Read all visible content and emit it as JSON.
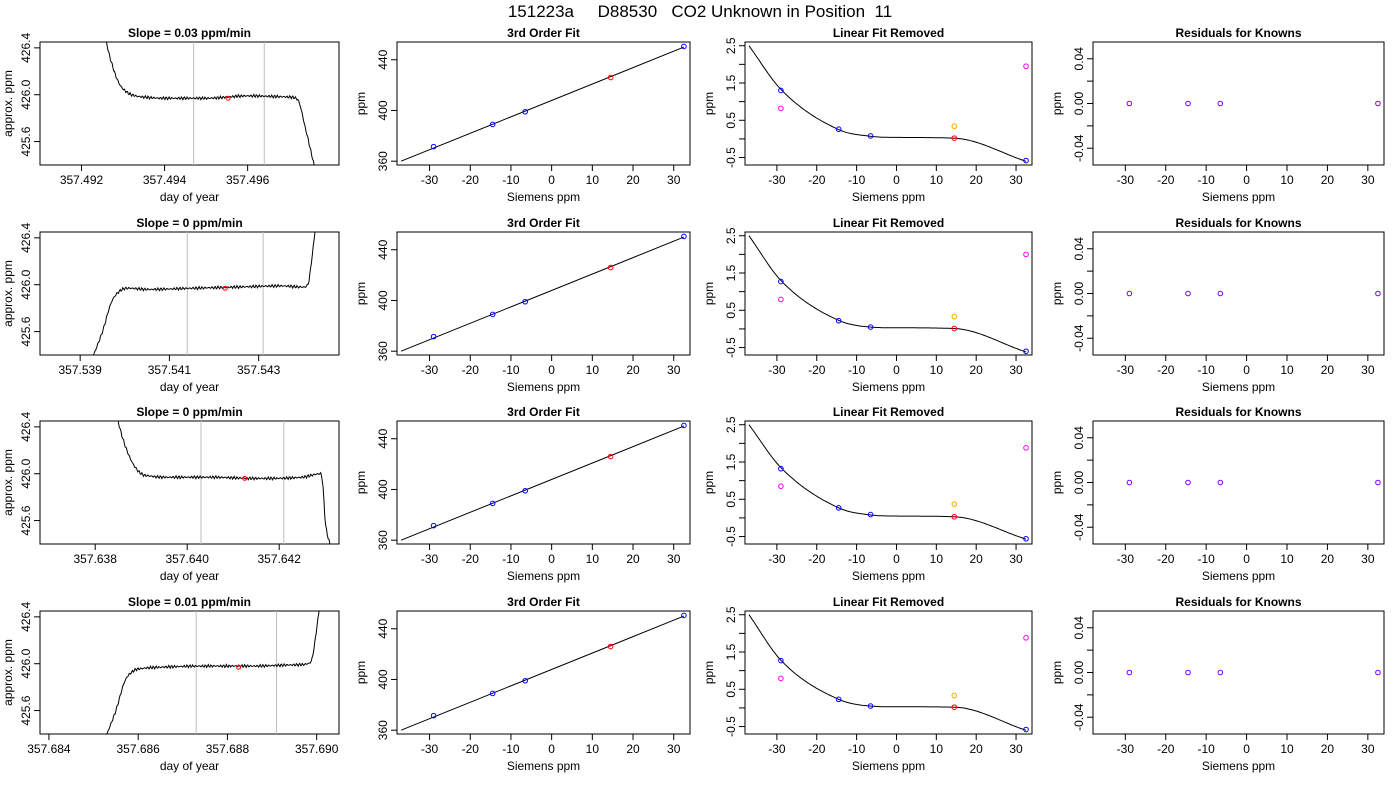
{
  "header": {
    "title": "151223a     D88530   CO2 Unknown in Position  11"
  },
  "colors": {
    "line": "#000000",
    "vline": "#bebebe",
    "known_point": "#0000ff",
    "unknown_point": "#ff0000",
    "raw_unknown": "#ffa500",
    "raw_known": "#ff00ff",
    "residual": "#8000ff"
  },
  "chart_data": [
    {
      "type": "line",
      "row": 0,
      "panel": "timeseries",
      "title": "Slope =  0.03  ppm/min",
      "xlabel": "day of year",
      "ylabel": "approx. ppm",
      "xlim": [
        357.491,
        357.4982
      ],
      "ylim": [
        425.4,
        426.45
      ],
      "xticks": [
        "357.492",
        "357.494",
        "357.496"
      ],
      "xtick_values": [
        357.492,
        357.494,
        357.496
      ],
      "yticks": [
        "425.6",
        "426.0",
        "426.4"
      ],
      "ytick_values": [
        425.6,
        426.0,
        426.4
      ],
      "vlines": [
        357.4947,
        357.4964
      ],
      "marker": {
        "x": 357.49553,
        "y": 425.97
      },
      "series": [
        {
          "x": [
            357.4925,
            357.4927,
            357.4929,
            357.4931,
            357.4933,
            357.4935,
            357.494,
            357.495,
            357.496,
            357.497,
            357.4972,
            357.4974,
            357.4976
          ],
          "y": [
            426.6,
            426.3,
            426.1,
            426.02,
            425.99,
            425.98,
            425.97,
            425.97,
            425.99,
            425.98,
            425.96,
            425.7,
            425.4
          ]
        }
      ]
    },
    {
      "type": "scatter",
      "row": 0,
      "panel": "fit",
      "title": "3rd Order Fit",
      "xlabel": "Siemens ppm",
      "ylabel": "ppm",
      "xlim": [
        -38,
        34
      ],
      "ylim": [
        357,
        454
      ],
      "xticks": [
        "-30",
        "-20",
        "-10",
        "0",
        "10",
        "20",
        "30"
      ],
      "xtick_values": [
        -30,
        -20,
        -10,
        0,
        10,
        20,
        30
      ],
      "yticks": [
        "360",
        "400",
        "440"
      ],
      "ytick_values": [
        360,
        400,
        440
      ],
      "line": {
        "x": [
          -37,
          32.5
        ],
        "y": [
          360,
          450
        ]
      },
      "knowns": {
        "x": [
          -29,
          -14.5,
          -6.5,
          32.5
        ],
        "y": [
          371.5,
          389,
          399,
          450.5
        ]
      },
      "unknown": {
        "x": 14.5,
        "y": 426
      }
    },
    {
      "type": "scatter",
      "row": 0,
      "panel": "linear_removed",
      "title": "Linear Fit Removed",
      "xlabel": "Siemens ppm",
      "ylabel": "ppm",
      "xlim": [
        -38,
        34
      ],
      "ylim": [
        -0.7,
        2.6
      ],
      "xticks": [
        "-30",
        "-20",
        "-10",
        "0",
        "10",
        "20",
        "30"
      ],
      "xtick_values": [
        -30,
        -20,
        -10,
        0,
        10,
        20,
        30
      ],
      "yticks": [
        "-0.5",
        "0.5",
        "1.5",
        "2.5"
      ],
      "ytick_values": [
        -0.5,
        0.5,
        1.5,
        2.5
      ],
      "minor_yticks": [
        0,
        1,
        2
      ],
      "curve": {
        "x": [
          -37,
          -29,
          -14.5,
          -6.5,
          0,
          14.5,
          32.5
        ],
        "y": [
          2.5,
          1.33,
          0.25,
          0.07,
          0.04,
          0.02,
          -0.6
        ]
      },
      "knowns": {
        "x": [
          -29,
          -14.5,
          -6.5,
          32.5
        ],
        "y": [
          1.3,
          0.26,
          0.08,
          -0.58
        ]
      },
      "unknown": {
        "x": 14.5,
        "y": 0.02
      },
      "raw_unknown": {
        "x": 14.5,
        "y": 0.34
      },
      "raw_known": {
        "x": [
          -29,
          32.5
        ],
        "y": [
          0.82,
          1.95
        ]
      }
    },
    {
      "type": "scatter",
      "row": 0,
      "panel": "residuals",
      "title": "Residuals for Knowns",
      "xlabel": "Siemens ppm",
      "ylabel": "ppm",
      "xlim": [
        -38,
        34
      ],
      "ylim": [
        -0.055,
        0.055
      ],
      "xticks": [
        "-30",
        "-20",
        "-10",
        "0",
        "10",
        "20",
        "30"
      ],
      "xtick_values": [
        -30,
        -20,
        -10,
        0,
        10,
        20,
        30
      ],
      "yticks": [
        "-0.04",
        "0.00",
        "0.04"
      ],
      "ytick_values": [
        -0.04,
        0,
        0.04
      ],
      "minor_yticks": [
        -0.02,
        0.02
      ],
      "points": {
        "x": [
          -29,
          -14.5,
          -6.5,
          32.5
        ],
        "y": [
          0,
          0,
          0,
          0
        ]
      }
    },
    {
      "type": "line",
      "row": 1,
      "panel": "timeseries",
      "title": "Slope =  0  ppm/min",
      "xlabel": "day of year",
      "ylabel": "approx. ppm",
      "xlim": [
        357.5381,
        357.5448
      ],
      "ylim": [
        425.4,
        426.45
      ],
      "xticks": [
        "357.539",
        "357.541",
        "357.543"
      ],
      "xtick_values": [
        357.539,
        357.541,
        357.543
      ],
      "yticks": [
        "425.6",
        "426.0",
        "426.4"
      ],
      "ytick_values": [
        425.6,
        426.0,
        426.4
      ],
      "vlines": [
        357.5414,
        357.5431
      ],
      "marker": {
        "x": 357.54225,
        "y": 425.97
      },
      "series": [
        {
          "x": [
            357.5393,
            357.5395,
            357.5397,
            357.5399,
            357.5401,
            357.5405,
            357.5415,
            357.5425,
            357.5435,
            357.544,
            357.5441,
            357.5442,
            357.5443
          ],
          "y": [
            425.4,
            425.6,
            425.85,
            425.95,
            425.97,
            425.96,
            425.97,
            425.98,
            425.99,
            425.98,
            426.0,
            426.25,
            426.6
          ]
        }
      ]
    },
    {
      "type": "scatter",
      "row": 1,
      "panel": "fit",
      "title": "3rd Order Fit",
      "xlabel": "Siemens ppm",
      "ylabel": "ppm",
      "xlim": [
        -38,
        34
      ],
      "ylim": [
        357,
        454
      ],
      "xticks": [
        "-30",
        "-20",
        "-10",
        "0",
        "10",
        "20",
        "30"
      ],
      "xtick_values": [
        -30,
        -20,
        -10,
        0,
        10,
        20,
        30
      ],
      "yticks": [
        "360",
        "400",
        "440"
      ],
      "ytick_values": [
        360,
        400,
        440
      ],
      "line": {
        "x": [
          -37,
          32.5
        ],
        "y": [
          360,
          450
        ]
      },
      "knowns": {
        "x": [
          -29,
          -14.5,
          -6.5,
          32.5
        ],
        "y": [
          371.5,
          389,
          399,
          450.5
        ]
      },
      "unknown": {
        "x": 14.5,
        "y": 426
      }
    },
    {
      "type": "scatter",
      "row": 1,
      "panel": "linear_removed",
      "title": "Linear Fit Removed",
      "xlabel": "Siemens ppm",
      "ylabel": "ppm",
      "xlim": [
        -38,
        34
      ],
      "ylim": [
        -0.7,
        2.6
      ],
      "xticks": [
        "-30",
        "-20",
        "-10",
        "0",
        "10",
        "20",
        "30"
      ],
      "xtick_values": [
        -30,
        -20,
        -10,
        0,
        10,
        20,
        30
      ],
      "yticks": [
        "-0.5",
        "0.5",
        "1.5",
        "2.5"
      ],
      "ytick_values": [
        -0.5,
        0.5,
        1.5,
        2.5
      ],
      "minor_yticks": [
        0,
        1,
        2
      ],
      "curve": {
        "x": [
          -37,
          -29,
          -14.5,
          -6.5,
          0,
          14.5,
          32.5
        ],
        "y": [
          2.5,
          1.3,
          0.23,
          0.05,
          0.03,
          0.01,
          -0.62
        ]
      },
      "knowns": {
        "x": [
          -29,
          -14.5,
          -6.5,
          32.5
        ],
        "y": [
          1.27,
          0.22,
          0.05,
          -0.6
        ]
      },
      "unknown": {
        "x": 14.5,
        "y": 0.01
      },
      "raw_unknown": {
        "x": 14.5,
        "y": 0.33
      },
      "raw_known": {
        "x": [
          -29,
          32.5
        ],
        "y": [
          0.79,
          2.0
        ]
      }
    },
    {
      "type": "scatter",
      "row": 1,
      "panel": "residuals",
      "title": "Residuals for Knowns",
      "xlabel": "Siemens ppm",
      "ylabel": "ppm",
      "xlim": [
        -38,
        34
      ],
      "ylim": [
        -0.055,
        0.055
      ],
      "xticks": [
        "-30",
        "-20",
        "-10",
        "0",
        "10",
        "20",
        "30"
      ],
      "xtick_values": [
        -30,
        -20,
        -10,
        0,
        10,
        20,
        30
      ],
      "yticks": [
        "-0.04",
        "0.00",
        "0.04"
      ],
      "ytick_values": [
        -0.04,
        0,
        0.04
      ],
      "minor_yticks": [
        -0.02,
        0.02
      ],
      "points": {
        "x": [
          -29,
          -14.5,
          -6.5,
          32.5
        ],
        "y": [
          0,
          0,
          0,
          0
        ]
      }
    },
    {
      "type": "line",
      "row": 2,
      "panel": "timeseries",
      "title": "Slope =  0  ppm/min",
      "xlabel": "day of year",
      "ylabel": "approx. ppm",
      "xlim": [
        357.6368,
        357.6433
      ],
      "ylim": [
        425.4,
        426.45
      ],
      "xticks": [
        "357.638",
        "357.640",
        "357.642"
      ],
      "xtick_values": [
        357.638,
        357.64,
        357.642
      ],
      "yticks": [
        "425.6",
        "426.0",
        "426.4"
      ],
      "ytick_values": [
        425.6,
        426.0,
        426.4
      ],
      "vlines": [
        357.6403,
        357.6421
      ],
      "marker": {
        "x": 357.64125,
        "y": 425.96
      },
      "series": [
        {
          "x": [
            357.6384,
            357.6386,
            357.6388,
            357.639,
            357.6392,
            357.6395,
            357.6405,
            357.6415,
            357.6425,
            357.6429,
            357.64295,
            357.643,
            357.6431
          ],
          "y": [
            426.6,
            426.3,
            426.1,
            426.0,
            425.98,
            425.97,
            425.97,
            425.96,
            425.97,
            426.0,
            425.9,
            425.6,
            425.4
          ]
        }
      ]
    },
    {
      "type": "scatter",
      "row": 2,
      "panel": "fit",
      "title": "3rd Order Fit",
      "xlabel": "Siemens ppm",
      "ylabel": "ppm",
      "xlim": [
        -38,
        34
      ],
      "ylim": [
        357,
        454
      ],
      "xticks": [
        "-30",
        "-20",
        "-10",
        "0",
        "10",
        "20",
        "30"
      ],
      "xtick_values": [
        -30,
        -20,
        -10,
        0,
        10,
        20,
        30
      ],
      "yticks": [
        "360",
        "400",
        "440"
      ],
      "ytick_values": [
        360,
        400,
        440
      ],
      "line": {
        "x": [
          -37,
          32.5
        ],
        "y": [
          360,
          450
        ]
      },
      "knowns": {
        "x": [
          -29,
          -14.5,
          -6.5,
          32.5
        ],
        "y": [
          371.5,
          389,
          399,
          450.5
        ]
      },
      "unknown": {
        "x": 14.5,
        "y": 426
      }
    },
    {
      "type": "scatter",
      "row": 2,
      "panel": "linear_removed",
      "title": "Linear Fit Removed",
      "xlabel": "Siemens ppm",
      "ylabel": "ppm",
      "xlim": [
        -38,
        34
      ],
      "ylim": [
        -0.7,
        2.6
      ],
      "xticks": [
        "-30",
        "-20",
        "-10",
        "0",
        "10",
        "20",
        "30"
      ],
      "xtick_values": [
        -30,
        -20,
        -10,
        0,
        10,
        20,
        30
      ],
      "yticks": [
        "-0.5",
        "0.5",
        "1.5",
        "2.5"
      ],
      "ytick_values": [
        -0.5,
        0.5,
        1.5,
        2.5
      ],
      "minor_yticks": [
        0,
        1,
        2
      ],
      "curve": {
        "x": [
          -37,
          -29,
          -14.5,
          -6.5,
          0,
          14.5,
          32.5
        ],
        "y": [
          2.5,
          1.35,
          0.27,
          0.08,
          0.05,
          0.03,
          -0.57
        ]
      },
      "knowns": {
        "x": [
          -29,
          -14.5,
          -6.5,
          32.5
        ],
        "y": [
          1.32,
          0.27,
          0.09,
          -0.56
        ]
      },
      "unknown": {
        "x": 14.5,
        "y": 0.03
      },
      "raw_unknown": {
        "x": 14.5,
        "y": 0.37
      },
      "raw_known": {
        "x": [
          -29,
          32.5
        ],
        "y": [
          0.85,
          1.88
        ]
      }
    },
    {
      "type": "scatter",
      "row": 2,
      "panel": "residuals",
      "title": "Residuals for Knowns",
      "xlabel": "Siemens ppm",
      "ylabel": "ppm",
      "xlim": [
        -38,
        34
      ],
      "ylim": [
        -0.055,
        0.055
      ],
      "xticks": [
        "-30",
        "-20",
        "-10",
        "0",
        "10",
        "20",
        "30"
      ],
      "xtick_values": [
        -30,
        -20,
        -10,
        0,
        10,
        20,
        30
      ],
      "yticks": [
        "-0.04",
        "0.00",
        "0.04"
      ],
      "ytick_values": [
        -0.04,
        0,
        0.04
      ],
      "minor_yticks": [
        -0.02,
        0.02
      ],
      "points": {
        "x": [
          -29,
          -14.5,
          -6.5,
          32.5
        ],
        "y": [
          0,
          0,
          0,
          0
        ]
      }
    },
    {
      "type": "line",
      "row": 3,
      "panel": "timeseries",
      "title": "Slope =  0.01  ppm/min",
      "xlabel": "day of year",
      "ylabel": "approx. ppm",
      "xlim": [
        357.6838,
        357.6905
      ],
      "ylim": [
        425.4,
        426.45
      ],
      "xticks": [
        "357.684",
        "357.686",
        "357.688",
        "357.690"
      ],
      "xtick_values": [
        357.684,
        357.686,
        357.688,
        357.69
      ],
      "yticks": [
        "425.6",
        "426.0",
        "426.4"
      ],
      "ytick_values": [
        425.6,
        426.0,
        426.4
      ],
      "vlines": [
        357.6873,
        357.6891
      ],
      "marker": {
        "x": 357.68825,
        "y": 425.97
      },
      "series": [
        {
          "x": [
            357.6853,
            357.6855,
            357.6857,
            357.6859,
            357.6861,
            357.6865,
            357.6875,
            357.6885,
            357.6895,
            357.6898,
            357.6899,
            357.69,
            357.6901
          ],
          "y": [
            425.4,
            425.6,
            425.85,
            425.94,
            425.96,
            425.97,
            425.98,
            425.98,
            425.99,
            426.0,
            426.05,
            426.3,
            426.6
          ]
        }
      ]
    },
    {
      "type": "scatter",
      "row": 3,
      "panel": "fit",
      "title": "3rd Order Fit",
      "xlabel": "Siemens ppm",
      "ylabel": "ppm",
      "xlim": [
        -38,
        34
      ],
      "ylim": [
        357,
        454
      ],
      "xticks": [
        "-30",
        "-20",
        "-10",
        "0",
        "10",
        "20",
        "30"
      ],
      "xtick_values": [
        -30,
        -20,
        -10,
        0,
        10,
        20,
        30
      ],
      "yticks": [
        "360",
        "400",
        "440"
      ],
      "ytick_values": [
        360,
        400,
        440
      ],
      "line": {
        "x": [
          -37,
          32.5
        ],
        "y": [
          360,
          450
        ]
      },
      "knowns": {
        "x": [
          -29,
          -14.5,
          -6.5,
          32.5
        ],
        "y": [
          371.5,
          389,
          399,
          450.5
        ]
      },
      "unknown": {
        "x": 14.5,
        "y": 426
      }
    },
    {
      "type": "scatter",
      "row": 3,
      "panel": "linear_removed",
      "title": "Linear Fit Removed",
      "xlabel": "Siemens ppm",
      "ylabel": "ppm",
      "xlim": [
        -38,
        34
      ],
      "ylim": [
        -0.7,
        2.6
      ],
      "xticks": [
        "-30",
        "-20",
        "-10",
        "0",
        "10",
        "20",
        "30"
      ],
      "xtick_values": [
        -30,
        -20,
        -10,
        0,
        10,
        20,
        30
      ],
      "yticks": [
        "-0.5",
        "0.5",
        "1.5",
        "2.5"
      ],
      "ytick_values": [
        -0.5,
        0.5,
        1.5,
        2.5
      ],
      "minor_yticks": [
        0,
        1,
        2
      ],
      "curve": {
        "x": [
          -37,
          -29,
          -14.5,
          -6.5,
          0,
          14.5,
          32.5
        ],
        "y": [
          2.5,
          1.28,
          0.23,
          0.05,
          0.03,
          0.02,
          -0.6
        ]
      },
      "knowns": {
        "x": [
          -29,
          -14.5,
          -6.5,
          32.5
        ],
        "y": [
          1.27,
          0.23,
          0.05,
          -0.58
        ]
      },
      "unknown": {
        "x": 14.5,
        "y": 0.02
      },
      "raw_unknown": {
        "x": 14.5,
        "y": 0.33
      },
      "raw_known": {
        "x": [
          -29,
          32.5
        ],
        "y": [
          0.79,
          1.88
        ]
      }
    },
    {
      "type": "scatter",
      "row": 3,
      "panel": "residuals",
      "title": "Residuals for Knowns",
      "xlabel": "Siemens ppm",
      "ylabel": "ppm",
      "xlim": [
        -38,
        34
      ],
      "ylim": [
        -0.055,
        0.055
      ],
      "xticks": [
        "-30",
        "-20",
        "-10",
        "0",
        "10",
        "20",
        "30"
      ],
      "xtick_values": [
        -30,
        -20,
        -10,
        0,
        10,
        20,
        30
      ],
      "yticks": [
        "-0.04",
        "0.00",
        "0.04"
      ],
      "ytick_values": [
        -0.04,
        0,
        0.04
      ],
      "minor_yticks": [
        -0.02,
        0.02
      ],
      "points": {
        "x": [
          -29,
          -14.5,
          -6.5,
          32.5
        ],
        "y": [
          0,
          0,
          0,
          0
        ]
      }
    }
  ]
}
